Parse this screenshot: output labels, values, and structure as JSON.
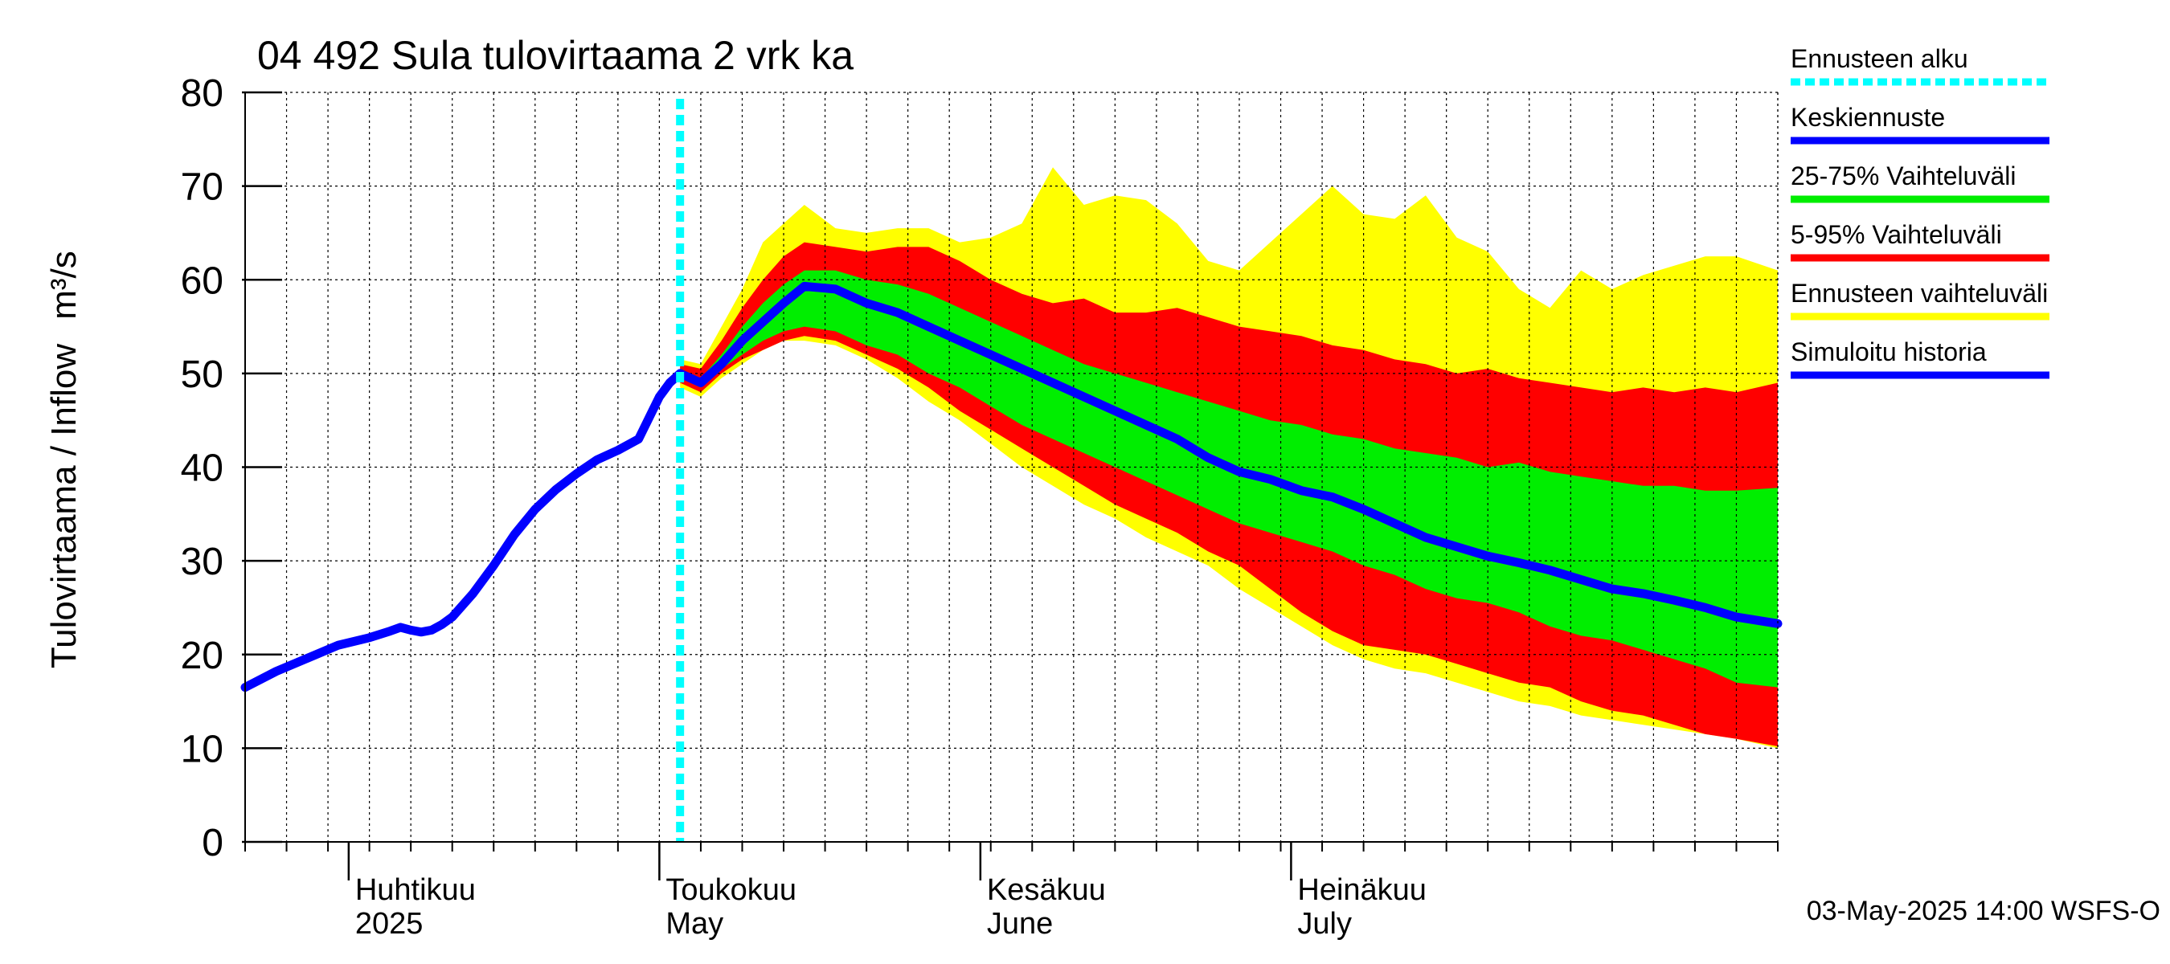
{
  "chart_data": {
    "type": "area",
    "title": "04 492 Sula tulovirtaama 2 vrk ka",
    "ylabel": "Tulovirtaama / Inflow",
    "yunit": "m³/s",
    "ylim": [
      0,
      80
    ],
    "yticks": [
      0,
      10,
      20,
      30,
      40,
      50,
      60,
      70,
      80
    ],
    "xlim": [
      "2025-03-22",
      "2025-08-17"
    ],
    "forecast_start": "2025-05-03",
    "grid": true,
    "months": [
      {
        "date": "2025-04-01",
        "fi": "Huhtikuu",
        "en": "2025"
      },
      {
        "date": "2025-05-01",
        "fi": "Toukokuu",
        "en": "May"
      },
      {
        "date": "2025-06-01",
        "fi": "Kesäkuu",
        "en": "June"
      },
      {
        "date": "2025-07-01",
        "fi": "Heinäkuu",
        "en": "July"
      }
    ],
    "legend": [
      {
        "label": "Ennusteen alku",
        "color": "#00ffff",
        "style": "dotted"
      },
      {
        "label": "Keskiennuste",
        "color": "#0000ff",
        "style": "solid"
      },
      {
        "label": "25-75% Vaihteluväli",
        "color": "#00ee00",
        "style": "solid"
      },
      {
        "label": "5-95% Vaihteluväli",
        "color": "#ff0000",
        "style": "solid"
      },
      {
        "label": "Ennusteen vaihteluväli",
        "color": "#ffff00",
        "style": "solid"
      },
      {
        "label": "Simuloitu historia",
        "color": "#0000ff",
        "style": "solid"
      }
    ],
    "footer": "03-May-2025 14:00 WSFS-O",
    "series": [
      {
        "name": "Simuloitu historia",
        "x": [
          "2025-03-22",
          "2025-03-25",
          "2025-03-28",
          "2025-03-31",
          "2025-04-03",
          "2025-04-05",
          "2025-04-06",
          "2025-04-07",
          "2025-04-08",
          "2025-04-09",
          "2025-04-10",
          "2025-04-11",
          "2025-04-13",
          "2025-04-15",
          "2025-04-17",
          "2025-04-19",
          "2025-04-21",
          "2025-04-23",
          "2025-04-25",
          "2025-04-27",
          "2025-04-29",
          "2025-05-01",
          "2025-05-02",
          "2025-05-03"
        ],
        "y": [
          16.5,
          18.2,
          19.6,
          21.0,
          21.8,
          22.5,
          22.9,
          22.6,
          22.4,
          22.6,
          23.2,
          24.0,
          26.5,
          29.5,
          32.8,
          35.5,
          37.6,
          39.3,
          40.8,
          41.8,
          43.0,
          47.5,
          49.0,
          50.0
        ]
      },
      {
        "name": "Keskiennuste",
        "x": [
          "2025-05-03",
          "2025-05-05",
          "2025-05-07",
          "2025-05-09",
          "2025-05-11",
          "2025-05-13",
          "2025-05-15",
          "2025-05-18",
          "2025-05-21",
          "2025-05-24",
          "2025-05-27",
          "2025-05-30",
          "2025-06-02",
          "2025-06-05",
          "2025-06-08",
          "2025-06-11",
          "2025-06-14",
          "2025-06-17",
          "2025-06-20",
          "2025-06-23",
          "2025-06-26",
          "2025-06-29",
          "2025-07-02",
          "2025-07-05",
          "2025-07-08",
          "2025-07-11",
          "2025-07-14",
          "2025-07-17",
          "2025-07-20",
          "2025-07-23",
          "2025-07-26",
          "2025-07-29",
          "2025-08-01",
          "2025-08-04",
          "2025-08-07",
          "2025-08-10",
          "2025-08-13",
          "2025-08-17"
        ],
        "y": [
          50.0,
          49.0,
          51.0,
          53.5,
          55.5,
          57.5,
          59.3,
          59.0,
          57.5,
          56.5,
          55.0,
          53.5,
          52.0,
          50.5,
          49.0,
          47.5,
          46.0,
          44.5,
          43.0,
          41.0,
          39.5,
          38.7,
          37.5,
          36.8,
          35.5,
          34.0,
          32.5,
          31.5,
          30.5,
          29.8,
          29.0,
          28.0,
          27.0,
          26.5,
          25.8,
          25.0,
          24.0,
          23.3
        ]
      },
      {
        "name": "25-75% Vaihteluväli",
        "x": [
          "2025-05-03",
          "2025-05-05",
          "2025-05-07",
          "2025-05-09",
          "2025-05-11",
          "2025-05-13",
          "2025-05-15",
          "2025-05-18",
          "2025-05-21",
          "2025-05-24",
          "2025-05-27",
          "2025-05-30",
          "2025-06-02",
          "2025-06-05",
          "2025-06-08",
          "2025-06-11",
          "2025-06-14",
          "2025-06-17",
          "2025-06-20",
          "2025-06-23",
          "2025-06-26",
          "2025-06-29",
          "2025-07-02",
          "2025-07-05",
          "2025-07-08",
          "2025-07-11",
          "2025-07-14",
          "2025-07-17",
          "2025-07-20",
          "2025-07-23",
          "2025-07-26",
          "2025-07-29",
          "2025-08-01",
          "2025-08-04",
          "2025-08-07",
          "2025-08-10",
          "2025-08-13",
          "2025-08-17"
        ],
        "low": [
          49.5,
          48.5,
          50.5,
          52.0,
          53.5,
          54.5,
          55.0,
          54.5,
          53.0,
          52.0,
          50.0,
          48.5,
          46.5,
          44.5,
          43.0,
          41.5,
          40.0,
          38.5,
          37.0,
          35.5,
          34.0,
          33.0,
          32.0,
          31.0,
          29.5,
          28.5,
          27.0,
          26.0,
          25.5,
          24.5,
          23.0,
          22.0,
          21.5,
          20.5,
          19.5,
          18.5,
          17.0,
          16.5
        ],
        "high": [
          50.5,
          49.5,
          52.0,
          55.0,
          57.5,
          59.5,
          61.0,
          61.0,
          60.0,
          59.5,
          58.5,
          57.0,
          55.5,
          54.0,
          52.5,
          51.0,
          50.0,
          49.0,
          48.0,
          47.0,
          46.0,
          45.0,
          44.5,
          43.5,
          43.0,
          42.0,
          41.5,
          41.0,
          40.0,
          40.5,
          39.5,
          39.0,
          38.5,
          38.0,
          38.0,
          37.5,
          37.5,
          37.8
        ]
      },
      {
        "name": "5-95% Vaihteluväli",
        "x": [
          "2025-05-03",
          "2025-05-05",
          "2025-05-07",
          "2025-05-09",
          "2025-05-11",
          "2025-05-13",
          "2025-05-15",
          "2025-05-18",
          "2025-05-21",
          "2025-05-24",
          "2025-05-27",
          "2025-05-30",
          "2025-06-02",
          "2025-06-05",
          "2025-06-08",
          "2025-06-11",
          "2025-06-14",
          "2025-06-17",
          "2025-06-20",
          "2025-06-23",
          "2025-06-26",
          "2025-06-29",
          "2025-07-02",
          "2025-07-05",
          "2025-07-08",
          "2025-07-11",
          "2025-07-14",
          "2025-07-17",
          "2025-07-20",
          "2025-07-23",
          "2025-07-26",
          "2025-07-29",
          "2025-08-01",
          "2025-08-04",
          "2025-08-07",
          "2025-08-10",
          "2025-08-13",
          "2025-08-17"
        ],
        "low": [
          49.0,
          48.0,
          50.0,
          51.5,
          52.5,
          53.5,
          54.0,
          53.5,
          52.0,
          50.5,
          48.5,
          46.0,
          44.0,
          42.0,
          40.0,
          38.0,
          36.0,
          34.5,
          33.0,
          31.0,
          29.5,
          27.0,
          24.5,
          22.5,
          21.0,
          20.5,
          20.0,
          19.0,
          18.0,
          17.0,
          16.5,
          15.0,
          14.0,
          13.5,
          12.5,
          11.5,
          11.0,
          10.2
        ],
        "high": [
          51.0,
          50.5,
          53.5,
          57.0,
          60.0,
          62.5,
          64.0,
          63.5,
          63.0,
          63.5,
          63.5,
          62.0,
          60.0,
          58.5,
          57.5,
          58.0,
          56.5,
          56.5,
          57.0,
          56.0,
          55.0,
          54.5,
          54.0,
          53.0,
          52.5,
          51.5,
          51.0,
          50.0,
          50.5,
          49.5,
          49.0,
          48.5,
          48.0,
          48.5,
          48.0,
          48.5,
          48.0,
          49.0
        ]
      },
      {
        "name": "Ennusteen vaihteluväli",
        "x": [
          "2025-05-03",
          "2025-05-05",
          "2025-05-07",
          "2025-05-09",
          "2025-05-11",
          "2025-05-13",
          "2025-05-15",
          "2025-05-18",
          "2025-05-21",
          "2025-05-24",
          "2025-05-27",
          "2025-05-30",
          "2025-06-02",
          "2025-06-05",
          "2025-06-08",
          "2025-06-11",
          "2025-06-14",
          "2025-06-17",
          "2025-06-20",
          "2025-06-23",
          "2025-06-26",
          "2025-06-29",
          "2025-07-02",
          "2025-07-05",
          "2025-07-08",
          "2025-07-11",
          "2025-07-14",
          "2025-07-17",
          "2025-07-20",
          "2025-07-23",
          "2025-07-26",
          "2025-07-29",
          "2025-08-01",
          "2025-08-04",
          "2025-08-07",
          "2025-08-10",
          "2025-08-13",
          "2025-08-17"
        ],
        "low": [
          48.5,
          47.5,
          49.5,
          51.0,
          52.5,
          53.5,
          53.5,
          53.0,
          51.5,
          49.5,
          47.0,
          45.0,
          42.5,
          40.0,
          38.0,
          36.0,
          34.5,
          32.5,
          31.0,
          29.5,
          27.0,
          25.0,
          23.0,
          21.0,
          19.5,
          18.5,
          18.0,
          17.0,
          16.0,
          15.0,
          14.5,
          13.5,
          13.0,
          12.5,
          12.0,
          11.5,
          11.0,
          10.0
        ],
        "high": [
          51.5,
          51.0,
          55.0,
          59.0,
          64.0,
          66.0,
          68.0,
          65.5,
          65.0,
          65.5,
          65.5,
          64.0,
          64.5,
          66.0,
          72.0,
          68.0,
          69.0,
          68.5,
          66.0,
          62.0,
          61.0,
          64.0,
          67.0,
          70.0,
          67.0,
          66.5,
          69.0,
          64.5,
          63.0,
          59.0,
          57.0,
          61.0,
          59.0,
          60.5,
          61.5,
          62.5,
          62.5,
          61.0
        ]
      }
    ]
  }
}
